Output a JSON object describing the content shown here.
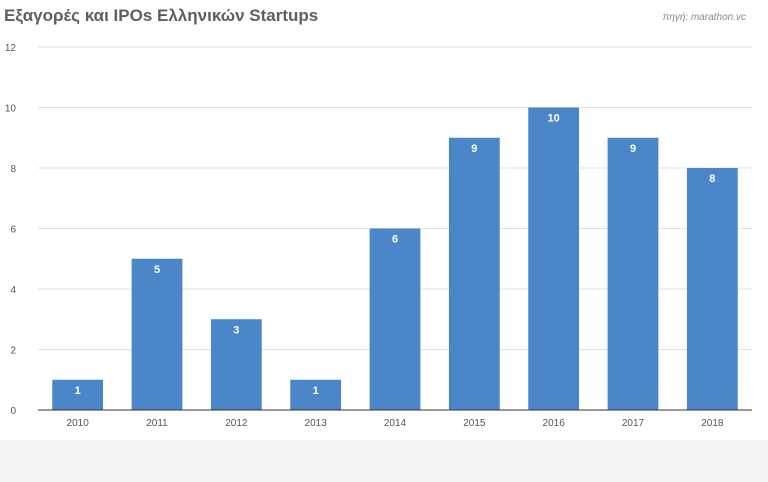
{
  "chart_data": {
    "type": "bar",
    "title": "Εξαγορές και IPOs Ελληνικών Startups",
    "source": "πηγή: marathon.vc",
    "categories": [
      "2010",
      "2011",
      "2012",
      "2013",
      "2014",
      "2015",
      "2016",
      "2017",
      "2018"
    ],
    "values": [
      1,
      5,
      3,
      1,
      6,
      9,
      10,
      9,
      8
    ],
    "data_labels": [
      "1",
      "5",
      "3",
      "1",
      "6",
      "9",
      "10",
      "9",
      "8"
    ],
    "yticks": [
      "0",
      "2",
      "4",
      "6",
      "8",
      "10",
      "12"
    ],
    "ylim": [
      0,
      12
    ],
    "xlabel": "",
    "ylabel": "",
    "grid": true,
    "legend": "none",
    "colors": {
      "bar": "#4a86c8",
      "background": "#ffffff",
      "page": "#f3f3f3"
    }
  }
}
